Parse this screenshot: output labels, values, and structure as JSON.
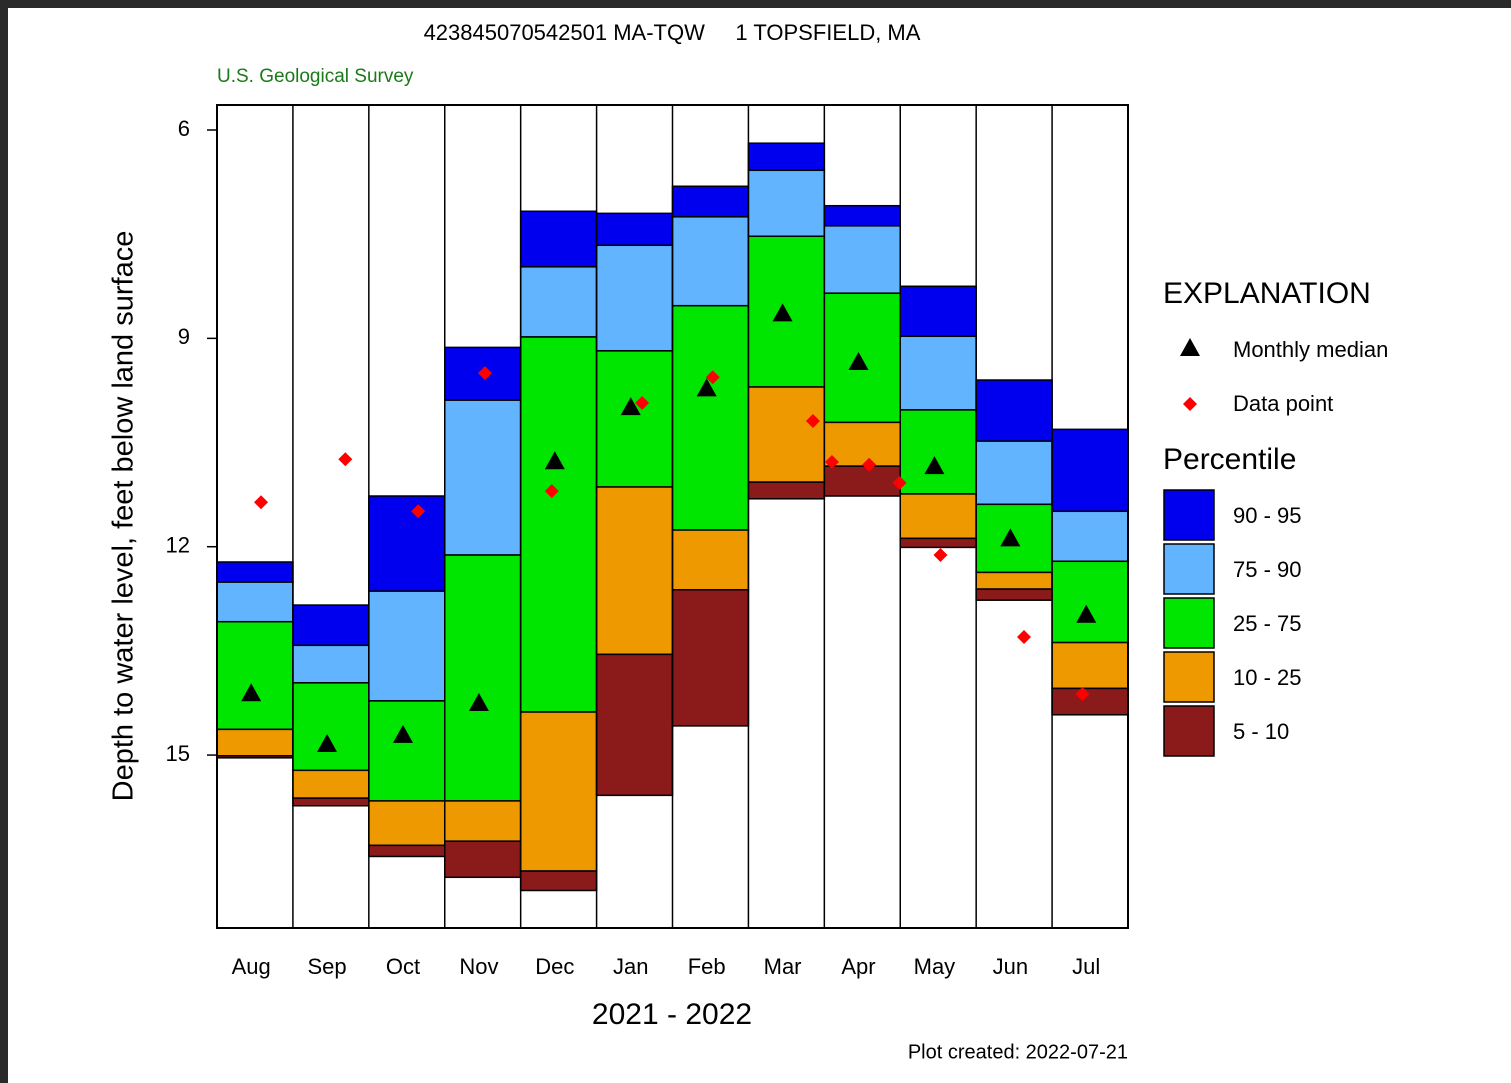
{
  "chart_data": {
    "type": "percentile_bar",
    "title": "423845070542501 MA-TQW     1 TOPSFIELD, MA",
    "subtitle": "U.S. Geological Survey",
    "y_label": "Depth to water level, feet below land surface",
    "x_label": "2021 - 2022",
    "footnote": "Plot created: 2022-07-21",
    "legend_title": "EXPLANATION",
    "band_legend_title": "Percentile",
    "categories": [
      "Aug",
      "Sep",
      "Oct",
      "Nov",
      "Dec",
      "Jan",
      "Feb",
      "Mar",
      "Apr",
      "May",
      "Jun",
      "Jul"
    ],
    "ylim": [
      5.64,
      17.49
    ],
    "y_inverted": true,
    "yticks": [
      6,
      9,
      12,
      15
    ],
    "xlim": [
      0,
      12
    ],
    "series": [
      {
        "name": "90 - 95",
        "color": "#0000ee",
        "top": [
          12.22,
          12.84,
          11.27,
          9.13,
          7.17,
          7.2,
          6.81,
          6.19,
          7.09,
          8.25,
          9.6,
          10.31
        ],
        "bottom": [
          12.51,
          13.42,
          12.64,
          9.89,
          7.97,
          7.66,
          7.25,
          6.58,
          7.38,
          8.97,
          10.48,
          11.49
        ]
      },
      {
        "name": "75 - 90",
        "color": "#62b4ff",
        "top": [
          12.51,
          13.42,
          12.64,
          9.89,
          7.97,
          7.66,
          7.25,
          6.58,
          7.38,
          8.97,
          10.48,
          11.49
        ],
        "bottom": [
          13.08,
          13.96,
          14.22,
          12.12,
          8.98,
          9.18,
          8.53,
          7.53,
          8.35,
          10.03,
          11.39,
          12.21
        ]
      },
      {
        "name": "25 - 75",
        "color": "#00e600",
        "top": [
          13.08,
          13.96,
          14.22,
          12.12,
          8.98,
          9.18,
          8.53,
          7.53,
          8.35,
          10.03,
          11.39,
          12.21
        ],
        "bottom": [
          14.63,
          15.22,
          15.66,
          15.66,
          14.38,
          11.14,
          11.76,
          9.7,
          10.21,
          11.24,
          12.37,
          13.38
        ]
      },
      {
        "name": "10 - 25",
        "color": "#ee9900",
        "top": [
          14.63,
          15.22,
          15.66,
          15.66,
          14.38,
          11.14,
          11.76,
          9.7,
          10.21,
          11.24,
          12.37,
          13.38
        ],
        "bottom": [
          15.01,
          15.62,
          16.3,
          16.24,
          16.67,
          13.55,
          12.62,
          11.07,
          10.84,
          11.88,
          12.61,
          14.04
        ]
      },
      {
        "name": "5 - 10",
        "color": "#8b1a1a",
        "top": [
          15.01,
          15.62,
          16.3,
          16.24,
          16.67,
          13.55,
          12.62,
          11.07,
          10.84,
          11.88,
          12.61,
          14.04
        ],
        "bottom": [
          15.04,
          15.73,
          16.46,
          16.76,
          16.95,
          15.58,
          14.58,
          11.31,
          11.27,
          12.01,
          12.77,
          14.42
        ]
      }
    ],
    "median": {
      "name": "Monthly median",
      "color": "#000000",
      "values": [
        14.11,
        14.84,
        14.71,
        14.25,
        10.77,
        9.99,
        9.72,
        8.64,
        9.34,
        10.84,
        11.88,
        12.98
      ]
    },
    "data_points": {
      "name": "Data point",
      "color": "#ff0000",
      "x": [
        0.58,
        1.69,
        2.65,
        3.53,
        4.41,
        5.6,
        6.53,
        7.85,
        8.1,
        8.59,
        8.99,
        9.53,
        10.63,
        11.4
      ],
      "values": [
        11.36,
        10.74,
        11.49,
        9.5,
        11.2,
        9.93,
        9.56,
        10.19,
        10.78,
        10.82,
        11.08,
        12.12,
        13.3,
        14.12
      ]
    }
  }
}
